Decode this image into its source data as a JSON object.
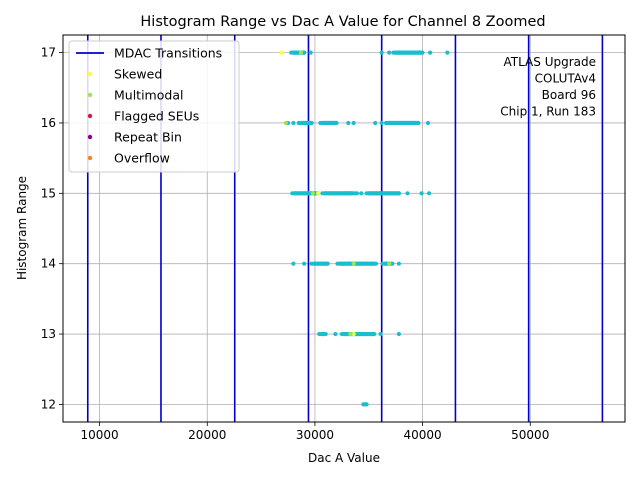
{
  "chart_data": {
    "type": "scatter",
    "title": "Histogram Range vs Dac A Value for Channel 8 Zoomed",
    "xlabel": "Dac A Value",
    "ylabel": "Histogram Range",
    "xlim": [
      6600,
      58800
    ],
    "ylim": [
      11.75,
      17.25
    ],
    "xticks": [
      10000,
      20000,
      30000,
      40000,
      50000
    ],
    "yticks": [
      12,
      13,
      14,
      15,
      16,
      17
    ],
    "grid": true,
    "legend_placement": "top-left",
    "annotation_lines": [
      "ATLAS Upgrade",
      "COLUTAv4",
      "Board 96",
      "Chip 1, Run 183"
    ],
    "mdac_transitions": {
      "name": "MDAC Transitions",
      "color": "#0000cc",
      "x": [
        8900,
        15700,
        22550,
        29400,
        36200,
        43050,
        49850,
        56700
      ]
    },
    "series": [
      {
        "name": "",
        "color": "#17becf",
        "segments": [
          {
            "y": 17,
            "x_start": 27800,
            "x_end": 29200
          },
          {
            "y": 17,
            "x_start": 37300,
            "x_end": 40100
          },
          {
            "y": 16,
            "x_start": 28500,
            "x_end": 29800
          },
          {
            "y": 16,
            "x_start": 30500,
            "x_end": 32200
          },
          {
            "y": 16,
            "x_start": 36600,
            "x_end": 39800
          },
          {
            "y": 15,
            "x_start": 27900,
            "x_end": 30400
          },
          {
            "y": 15,
            "x_start": 30700,
            "x_end": 33700
          },
          {
            "y": 15,
            "x_start": 34800,
            "x_end": 38000
          },
          {
            "y": 14,
            "x_start": 29700,
            "x_end": 31300
          },
          {
            "y": 14,
            "x_start": 32100,
            "x_end": 35700
          },
          {
            "y": 14,
            "x_start": 36300,
            "x_end": 37300
          },
          {
            "y": 13,
            "x_start": 32500,
            "x_end": 35700
          },
          {
            "y": 13,
            "x_start": 30400,
            "x_end": 31000
          },
          {
            "y": 12,
            "x_start": 34500,
            "x_end": 34900
          }
        ],
        "points": [
          {
            "x": 29600,
            "y": 17
          },
          {
            "x": 36200,
            "y": 17
          },
          {
            "x": 36900,
            "y": 17
          },
          {
            "x": 40700,
            "y": 17
          },
          {
            "x": 42300,
            "y": 17
          },
          {
            "x": 27500,
            "y": 16
          },
          {
            "x": 28000,
            "y": 16
          },
          {
            "x": 33100,
            "y": 16
          },
          {
            "x": 33600,
            "y": 16
          },
          {
            "x": 35600,
            "y": 16
          },
          {
            "x": 36200,
            "y": 16
          },
          {
            "x": 40500,
            "y": 16
          },
          {
            "x": 33000,
            "y": 15
          },
          {
            "x": 33900,
            "y": 15
          },
          {
            "x": 34300,
            "y": 15
          },
          {
            "x": 38600,
            "y": 15
          },
          {
            "x": 39900,
            "y": 15
          },
          {
            "x": 40600,
            "y": 15
          },
          {
            "x": 28000,
            "y": 14
          },
          {
            "x": 29000,
            "y": 14
          },
          {
            "x": 37800,
            "y": 14
          },
          {
            "x": 31900,
            "y": 13
          },
          {
            "x": 36100,
            "y": 13
          },
          {
            "x": 37800,
            "y": 13
          }
        ]
      },
      {
        "name": "Skewed",
        "color": "#ffff33",
        "points": [
          {
            "x": 26900,
            "y": 17
          },
          {
            "x": 33600,
            "y": 13
          },
          {
            "x": 30300,
            "y": 15
          }
        ]
      },
      {
        "name": "Multimodal",
        "color": "#99e64d",
        "points": [
          {
            "x": 28700,
            "y": 17
          },
          {
            "x": 27300,
            "y": 16
          },
          {
            "x": 33600,
            "y": 14
          },
          {
            "x": 36900,
            "y": 14
          },
          {
            "x": 33300,
            "y": 13
          },
          {
            "x": 29800,
            "y": 15
          }
        ]
      },
      {
        "name": "Flagged SEUs",
        "color": "#dc143c",
        "points": []
      },
      {
        "name": "Repeat Bin",
        "color": "#8b008b",
        "points": []
      },
      {
        "name": "Overflow",
        "color": "#ff7f0e",
        "points": []
      }
    ]
  }
}
